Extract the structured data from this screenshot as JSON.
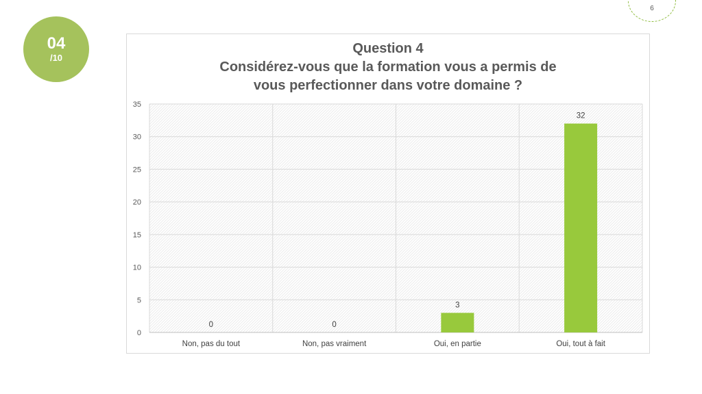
{
  "slide": {
    "badge_number": "04",
    "badge_total": "/10",
    "page_number": "6"
  },
  "colors": {
    "badge": "#a5c25c",
    "bar": "#98c93c",
    "page_circle": "#8dbb3c"
  },
  "chart_data": {
    "type": "bar",
    "title_line1": "Question 4",
    "title_line2": "Considérez-vous que la formation vous a permis de",
    "title_line3": "vous perfectionner dans votre domaine ?",
    "categories": [
      "Non, pas du tout",
      "Non, pas vraiment",
      "Oui, en partie",
      "Oui, tout à fait"
    ],
    "values": [
      0,
      0,
      3,
      32
    ],
    "ylim": [
      0,
      35
    ],
    "yticks": [
      0,
      5,
      10,
      15,
      20,
      25,
      30,
      35
    ],
    "grid": true,
    "data_labels": true,
    "legend": "none"
  }
}
